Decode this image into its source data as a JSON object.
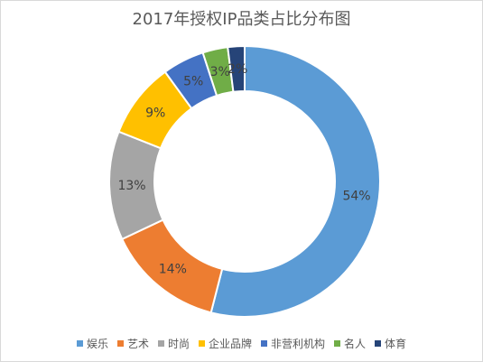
{
  "chart_data": {
    "type": "pie",
    "variant": "doughnut",
    "title": "2017年授权IP品类占比分布图",
    "legend_position": "bottom",
    "slices": [
      {
        "label": "娱乐",
        "value": 54,
        "display": "54%",
        "color": "#5B9BD5"
      },
      {
        "label": "艺术",
        "value": 14,
        "display": "14%",
        "color": "#ED7D31"
      },
      {
        "label": "时尚",
        "value": 13,
        "display": "13%",
        "color": "#A5A5A5"
      },
      {
        "label": "企业品牌",
        "value": 9,
        "display": "9%",
        "color": "#FFC000"
      },
      {
        "label": "非营利机构",
        "value": 5,
        "display": "5%",
        "color": "#4472C4"
      },
      {
        "label": "名人",
        "value": 3,
        "display": "3%",
        "color": "#70AD47"
      },
      {
        "label": "体育",
        "value": 2,
        "display": "2%",
        "color": "#264478"
      }
    ]
  }
}
